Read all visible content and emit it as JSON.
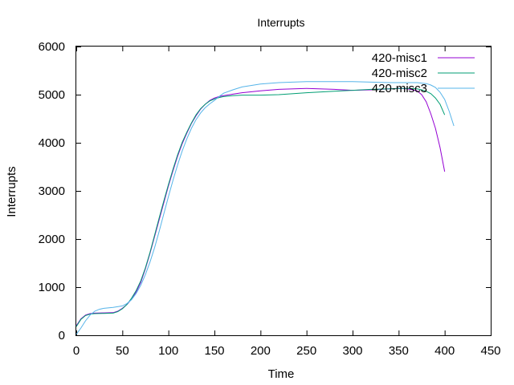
{
  "chart_data": {
    "type": "line",
    "title": "Interrupts",
    "xlabel": "Time",
    "ylabel": "Interrupts",
    "xlim": [
      0,
      450
    ],
    "ylim": [
      0,
      6000
    ],
    "xticks": [
      "0",
      "50",
      "100",
      "150",
      "200",
      "250",
      "300",
      "350",
      "400",
      "450"
    ],
    "yticks": [
      "0",
      "1000",
      "2000",
      "3000",
      "4000",
      "5000",
      "6000"
    ],
    "grid": false,
    "legend_position": "top-right",
    "series": [
      {
        "name": "420-misc1",
        "color": "#9400d3",
        "x": [
          0,
          5,
          10,
          15,
          20,
          30,
          40,
          45,
          50,
          55,
          60,
          65,
          70,
          75,
          80,
          85,
          90,
          95,
          100,
          105,
          110,
          115,
          120,
          125,
          130,
          135,
          140,
          145,
          150,
          155,
          160,
          170,
          180,
          200,
          220,
          250,
          280,
          300,
          320,
          340,
          350,
          360,
          370,
          375,
          380,
          385,
          390,
          395,
          400
        ],
        "y": [
          200,
          340,
          420,
          450,
          460,
          465,
          470,
          500,
          560,
          640,
          750,
          900,
          1100,
          1380,
          1700,
          2050,
          2400,
          2750,
          3100,
          3420,
          3720,
          3980,
          4200,
          4400,
          4560,
          4700,
          4800,
          4880,
          4930,
          4960,
          4980,
          5010,
          5040,
          5080,
          5110,
          5130,
          5110,
          5090,
          5100,
          5120,
          5130,
          5120,
          5080,
          5000,
          4850,
          4600,
          4300,
          3900,
          3400
        ]
      },
      {
        "name": "420-misc2",
        "color": "#009e73",
        "x": [
          0,
          5,
          10,
          15,
          20,
          30,
          40,
          45,
          50,
          55,
          60,
          65,
          70,
          75,
          80,
          85,
          90,
          95,
          100,
          105,
          110,
          115,
          120,
          125,
          130,
          135,
          140,
          145,
          150,
          155,
          160,
          170,
          180,
          200,
          220,
          250,
          280,
          300,
          320,
          340,
          350,
          360,
          370,
          375,
          380,
          385,
          390,
          395,
          400
        ],
        "y": [
          180,
          330,
          410,
          440,
          450,
          455,
          460,
          490,
          550,
          640,
          770,
          930,
          1130,
          1400,
          1720,
          2080,
          2440,
          2790,
          3130,
          3450,
          3750,
          4010,
          4220,
          4410,
          4580,
          4710,
          4800,
          4870,
          4910,
          4940,
          4960,
          4980,
          4990,
          4990,
          5000,
          5040,
          5070,
          5090,
          5110,
          5120,
          5130,
          5130,
          5120,
          5100,
          5070,
          5020,
          4930,
          4800,
          4580
        ]
      },
      {
        "name": "420-misc3",
        "color": "#56b4e9",
        "x": [
          0,
          5,
          10,
          15,
          20,
          25,
          30,
          40,
          50,
          55,
          60,
          65,
          70,
          75,
          80,
          85,
          90,
          95,
          100,
          105,
          110,
          115,
          120,
          125,
          130,
          135,
          140,
          145,
          150,
          155,
          160,
          170,
          180,
          200,
          220,
          250,
          280,
          300,
          320,
          340,
          360,
          370,
          380,
          385,
          390,
          395,
          400,
          405,
          410
        ],
        "y": [
          20,
          150,
          300,
          420,
          500,
          540,
          560,
          580,
          610,
          660,
          740,
          870,
          1040,
          1260,
          1520,
          1820,
          2160,
          2520,
          2880,
          3220,
          3540,
          3830,
          4080,
          4300,
          4480,
          4620,
          4730,
          4810,
          4880,
          4960,
          5030,
          5100,
          5160,
          5220,
          5250,
          5270,
          5270,
          5270,
          5260,
          5250,
          5250,
          5250,
          5230,
          5200,
          5150,
          5050,
          4900,
          4650,
          4350
        ]
      }
    ]
  }
}
